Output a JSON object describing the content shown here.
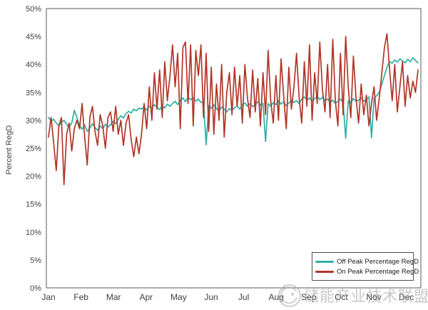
{
  "chart_data": {
    "type": "line",
    "title": "",
    "xlabel": "",
    "ylabel": "Percent RegD",
    "ylim": [
      0,
      50
    ],
    "ytick_step": 5,
    "ytick_suffix": "%",
    "grid": false,
    "legend_position": "inside-bottom-right",
    "x_categories": [
      "Jan",
      "Feb",
      "Mar",
      "Apr",
      "May",
      "Jun",
      "Jul",
      "Aug",
      "Sep",
      "Oct",
      "Nov",
      "Dec"
    ],
    "points_per_month": 12,
    "axis_color": "#595959",
    "tick_label_color": "#404040",
    "series": [
      {
        "name": "Off Peak Percentage RegD",
        "color": "#2FAFA3",
        "values": [
          30.5,
          29.8,
          30.2,
          29.5,
          29.0,
          29.6,
          30.0,
          29.3,
          28.8,
          29.5,
          31.8,
          30.5,
          29.0,
          28.4,
          29.2,
          28.0,
          28.6,
          29.4,
          28.7,
          28.2,
          29.0,
          28.5,
          29.3,
          28.8,
          29.2,
          29.8,
          29.4,
          30.2,
          30.8,
          30.4,
          31.2,
          31.6,
          31.3,
          32.0,
          31.7,
          32.2,
          32.0,
          32.4,
          31.8,
          32.5,
          32.2,
          32.8,
          32.3,
          31.9,
          32.6,
          32.2,
          32.9,
          32.5,
          33.0,
          33.4,
          32.8,
          33.6,
          34.0,
          33.3,
          34.2,
          33.7,
          34.0,
          33.4,
          33.8,
          33.2,
          33.2,
          25.6,
          32.6,
          32.2,
          32.8,
          32.1,
          31.7,
          32.4,
          32.0,
          31.5,
          32.1,
          31.8,
          32.2,
          32.6,
          32.0,
          32.8,
          33.1,
          32.5,
          33.0,
          32.4,
          32.9,
          33.3,
          32.7,
          33.0,
          26.2,
          33.0,
          32.5,
          33.2,
          32.8,
          33.5,
          32.9,
          33.3,
          32.6,
          33.1,
          33.6,
          33.2,
          33.5,
          33.0,
          33.8,
          34.2,
          33.6,
          34.0,
          33.4,
          33.9,
          34.3,
          33.7,
          34.1,
          33.5,
          33.8,
          33.2,
          33.6,
          33.0,
          33.4,
          33.8,
          33.2,
          26.8,
          33.5,
          33.1,
          33.9,
          33.4,
          33.6,
          34.0,
          33.4,
          33.8,
          34.2,
          26.9,
          34.0,
          34.4,
          35.0,
          36.5,
          38.0,
          39.5,
          40.5,
          40.2,
          40.8,
          40.4,
          41.0,
          40.6,
          40.3,
          40.9,
          40.5,
          41.2,
          40.7,
          40.3
        ]
      },
      {
        "name": "On Peak Percentage RegD",
        "color": "#B23528",
        "values": [
          27.0,
          30.5,
          26.0,
          21.0,
          29.0,
          30.5,
          18.5,
          27.5,
          29.5,
          24.5,
          28.5,
          30.0,
          28.5,
          33.0,
          27.0,
          22.0,
          30.5,
          32.5,
          28.0,
          25.5,
          31.0,
          29.0,
          25.0,
          30.5,
          31.5,
          28.0,
          32.5,
          27.5,
          30.0,
          25.5,
          29.5,
          31.0,
          26.5,
          23.5,
          27.0,
          24.0,
          27.5,
          33.0,
          28.5,
          36.0,
          30.0,
          38.5,
          32.0,
          39.0,
          30.5,
          40.5,
          33.5,
          38.0,
          43.5,
          36.0,
          42.0,
          28.5,
          43.0,
          44.0,
          33.0,
          43.5,
          29.0,
          42.5,
          38.0,
          43.5,
          30.5,
          42.0,
          28.0,
          39.5,
          27.5,
          36.5,
          30.0,
          40.0,
          27.0,
          35.0,
          38.5,
          31.0,
          39.5,
          32.5,
          38.0,
          29.5,
          40.0,
          34.0,
          30.5,
          39.0,
          31.5,
          37.5,
          29.0,
          38.5,
          31.0,
          42.5,
          33.5,
          29.5,
          38.0,
          30.0,
          41.0,
          34.5,
          28.5,
          39.5,
          32.0,
          36.0,
          42.0,
          34.0,
          29.5,
          40.5,
          32.5,
          43.5,
          30.0,
          38.5,
          33.0,
          44.0,
          35.5,
          31.5,
          40.0,
          30.5,
          44.5,
          33.5,
          29.0,
          42.0,
          31.0,
          45.0,
          36.0,
          30.5,
          41.5,
          34.0,
          29.5,
          36.5,
          31.0,
          34.5,
          29.0,
          33.0,
          36.0,
          30.0,
          34.0,
          38.5,
          43.0,
          45.5,
          39.0,
          33.5,
          40.0,
          31.5,
          36.0,
          40.5,
          32.5,
          38.0,
          34.0,
          37.0,
          35.0,
          39.0
        ]
      }
    ]
  },
  "watermark": {
    "text": "储能产业技术联盟",
    "color": "#9a9a9a"
  }
}
